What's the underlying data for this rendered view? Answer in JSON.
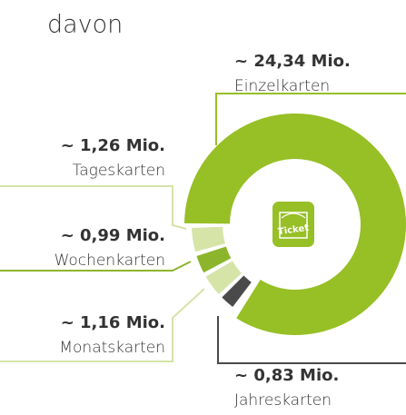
{
  "chart_data": {
    "type": "donut",
    "title": "davon",
    "categories": [
      "Einzelkarten",
      "Tageskarten",
      "Wochenkarten",
      "Monatskarten",
      "Jahreskarten"
    ],
    "values": [
      24.34,
      1.26,
      0.99,
      1.16,
      0.83
    ],
    "value_labels": [
      "~ 24,34 Mio.",
      "~ 1,26 Mio.",
      "~ 0,99 Mio.",
      "~ 1,16 Mio.",
      "~ 0,83 Mio."
    ],
    "colors": [
      "#97bf26",
      "#d6e4a8",
      "#8cb52b",
      "#d6e4a8",
      "#4a4a4a"
    ],
    "icon_text": "Ticket"
  }
}
